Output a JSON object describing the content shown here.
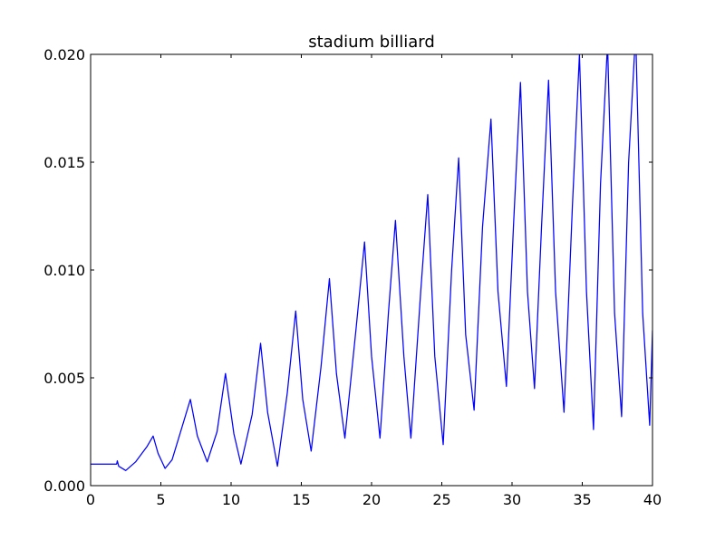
{
  "chart_data": {
    "type": "line",
    "title": "stadium billiard",
    "xlabel": "",
    "ylabel": "",
    "xlim": [
      0,
      40
    ],
    "ylim": [
      0,
      0.02
    ],
    "xticks": [
      {
        "value": 0,
        "label": "0"
      },
      {
        "value": 5,
        "label": "5"
      },
      {
        "value": 10,
        "label": "10"
      },
      {
        "value": 15,
        "label": "15"
      },
      {
        "value": 20,
        "label": "20"
      },
      {
        "value": 25,
        "label": "25"
      },
      {
        "value": 30,
        "label": "30"
      },
      {
        "value": 35,
        "label": "35"
      },
      {
        "value": 40,
        "label": "40"
      }
    ],
    "yticks": [
      {
        "value": 0.0,
        "label": "0.000"
      },
      {
        "value": 0.005,
        "label": "0.005"
      },
      {
        "value": 0.01,
        "label": "0.010"
      },
      {
        "value": 0.015,
        "label": "0.015"
      },
      {
        "value": 0.02,
        "label": "0.020"
      }
    ],
    "grid": false,
    "line_color": "#0000ff",
    "series": [
      {
        "values": [
          [
            0.0,
            0.001
          ],
          [
            1.85,
            0.001
          ],
          [
            1.9,
            0.00115
          ],
          [
            2.0,
            0.0009
          ],
          [
            2.5,
            0.0007
          ],
          [
            3.2,
            0.0011
          ],
          [
            4.0,
            0.0018
          ],
          [
            4.45,
            0.0023
          ],
          [
            4.8,
            0.0015
          ],
          [
            5.3,
            0.0008
          ],
          [
            5.8,
            0.0012
          ],
          [
            6.5,
            0.0027
          ],
          [
            7.1,
            0.004
          ],
          [
            7.6,
            0.0023
          ],
          [
            8.3,
            0.0011
          ],
          [
            9.0,
            0.0025
          ],
          [
            9.6,
            0.0052
          ],
          [
            10.2,
            0.0024
          ],
          [
            10.7,
            0.001
          ],
          [
            11.5,
            0.0033
          ],
          [
            12.1,
            0.0066
          ],
          [
            12.6,
            0.0034
          ],
          [
            13.3,
            0.0009
          ],
          [
            14.0,
            0.0043
          ],
          [
            14.6,
            0.0081
          ],
          [
            15.1,
            0.004
          ],
          [
            15.7,
            0.0016
          ],
          [
            16.4,
            0.0055
          ],
          [
            17.0,
            0.0096
          ],
          [
            17.5,
            0.0052
          ],
          [
            18.1,
            0.0022
          ],
          [
            18.9,
            0.0073
          ],
          [
            19.5,
            0.0113
          ],
          [
            20.0,
            0.006
          ],
          [
            20.6,
            0.0022
          ],
          [
            21.2,
            0.008
          ],
          [
            21.7,
            0.0123
          ],
          [
            22.3,
            0.006
          ],
          [
            22.8,
            0.0022
          ],
          [
            23.5,
            0.009
          ],
          [
            24.0,
            0.0135
          ],
          [
            24.5,
            0.006
          ],
          [
            25.1,
            0.0019
          ],
          [
            25.7,
            0.01
          ],
          [
            26.2,
            0.0152
          ],
          [
            26.7,
            0.007
          ],
          [
            27.3,
            0.0035
          ],
          [
            27.9,
            0.012
          ],
          [
            28.5,
            0.017
          ],
          [
            29.0,
            0.009
          ],
          [
            29.6,
            0.0046
          ],
          [
            30.1,
            0.012
          ],
          [
            30.6,
            0.0187
          ],
          [
            31.1,
            0.009
          ],
          [
            31.6,
            0.0045
          ],
          [
            32.1,
            0.012
          ],
          [
            32.6,
            0.0188
          ],
          [
            33.1,
            0.009
          ],
          [
            33.7,
            0.0034
          ],
          [
            34.3,
            0.013
          ],
          [
            34.8,
            0.02
          ],
          [
            35.3,
            0.009
          ],
          [
            35.8,
            0.0026
          ],
          [
            36.3,
            0.014
          ],
          [
            36.8,
            0.0205
          ],
          [
            37.3,
            0.008
          ],
          [
            37.8,
            0.0032
          ],
          [
            38.3,
            0.015
          ],
          [
            38.8,
            0.021
          ],
          [
            39.3,
            0.008
          ],
          [
            39.8,
            0.0028
          ],
          [
            40.0,
            0.0072
          ]
        ]
      }
    ]
  }
}
